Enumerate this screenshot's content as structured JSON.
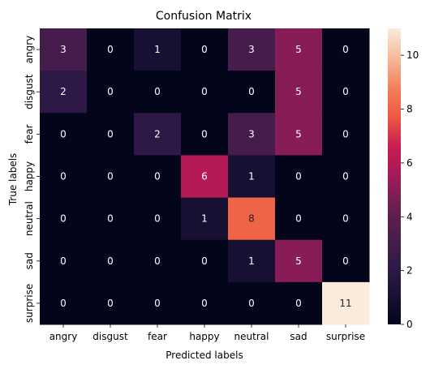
{
  "chart_data": {
    "type": "heatmap",
    "title": "Confusion Matrix",
    "xlabel": "Predicted labels",
    "ylabel": "True labels",
    "x_categories": [
      "angry",
      "disgust",
      "fear",
      "happy",
      "neutral",
      "sad",
      "surprise"
    ],
    "y_categories": [
      "angry",
      "disgust",
      "fear",
      "happy",
      "neutral",
      "sad",
      "surprise"
    ],
    "values": [
      [
        3,
        0,
        1,
        0,
        3,
        5,
        0
      ],
      [
        2,
        0,
        0,
        0,
        0,
        5,
        0
      ],
      [
        0,
        0,
        2,
        0,
        3,
        5,
        0
      ],
      [
        0,
        0,
        0,
        6,
        1,
        0,
        0
      ],
      [
        0,
        0,
        0,
        1,
        8,
        0,
        0
      ],
      [
        0,
        0,
        0,
        0,
        1,
        5,
        0
      ],
      [
        0,
        0,
        0,
        0,
        0,
        0,
        11
      ]
    ],
    "colorbar": {
      "range": [
        0,
        11
      ],
      "ticks": [
        0,
        2,
        4,
        6,
        8,
        10
      ],
      "colormap": "rocket"
    },
    "annotation_colors": {
      "dark_text": "#262626",
      "light_text": "#ffffff"
    }
  }
}
